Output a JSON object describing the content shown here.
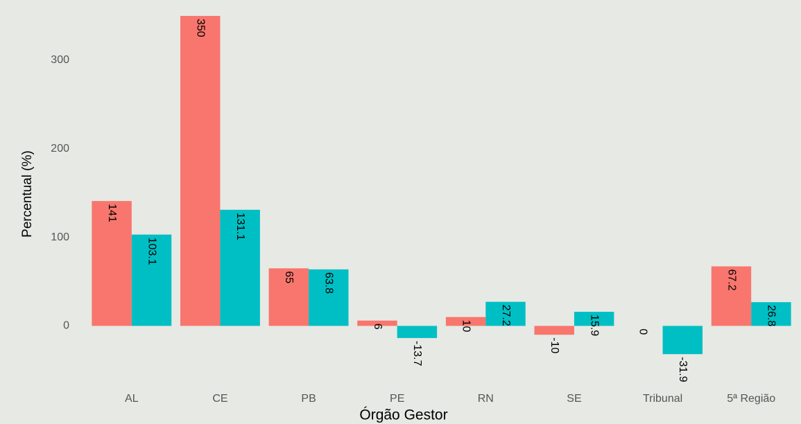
{
  "chart_data": {
    "type": "bar",
    "x_label": "Órgão Gestor",
    "y_label": "Percentual (%)",
    "categories": [
      "AL",
      "CE",
      "PB",
      "PE",
      "RN",
      "SE",
      "Tribunal",
      "5ª Região"
    ],
    "series": [
      {
        "color": "#F8766D",
        "values": [
          141,
          350,
          65,
          6,
          10,
          -10,
          0,
          67.2
        ]
      },
      {
        "color": "#00BFC4",
        "values": [
          103.1,
          131.1,
          63.8,
          -13.7,
          27.2,
          15.9,
          -31.9,
          26.8
        ]
      }
    ],
    "ylim": [
      -74,
      357
    ],
    "yticks": [
      0,
      100,
      200,
      300
    ],
    "grid": false
  }
}
